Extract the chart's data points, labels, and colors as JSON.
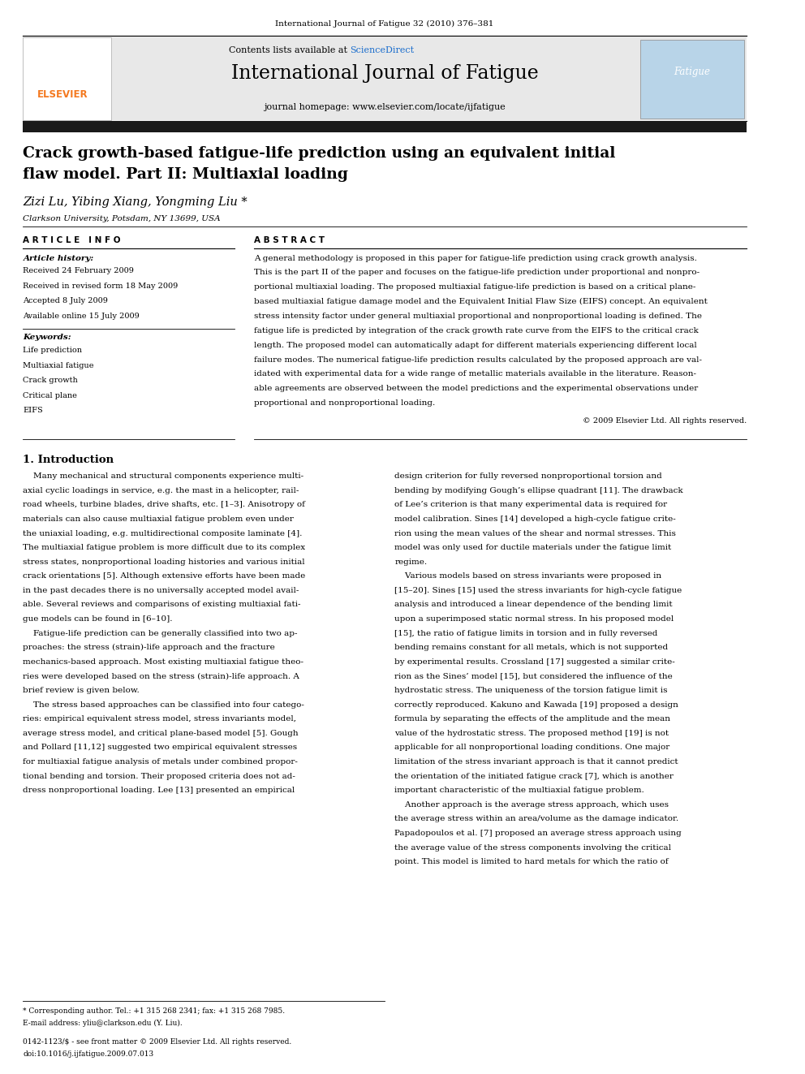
{
  "page_width": 9.92,
  "page_height": 13.23,
  "background_color": "#ffffff",
  "top_note": "International Journal of Fatigue 32 (2010) 376–381",
  "header_bg": "#e8e8e8",
  "header_title": "International Journal of Fatigue",
  "header_subtitle": "journal homepage: www.elsevier.com/locate/ijfatigue",
  "header_contents": "Contents lists available at ScienceDirect",
  "sciencedirect_color": "#1a6dcc",
  "elsevier_color": "#f47920",
  "dark_bar_color": "#1a1a1a",
  "article_title_line1": "Crack growth-based fatigue-life prediction using an equivalent initial",
  "article_title_line2": "flaw model. Part II: Multiaxial loading",
  "authors": "Zizi Lu, Yibing Xiang, Yongming Liu *",
  "affiliation": "Clarkson University, Potsdam, NY 13699, USA",
  "article_info_header": "A R T I C L E   I N F O",
  "abstract_header": "A B S T R A C T",
  "article_history_label": "Article history:",
  "history_lines": [
    "Received 24 February 2009",
    "Received in revised form 18 May 2009",
    "Accepted 8 July 2009",
    "Available online 15 July 2009"
  ],
  "keywords_label": "Keywords:",
  "keywords": [
    "Life prediction",
    "Multiaxial fatigue",
    "Crack growth",
    "Critical plane",
    "EIFS"
  ],
  "abstract_lines": [
    "A general methodology is proposed in this paper for fatigue-life prediction using crack growth analysis.",
    "This is the part II of the paper and focuses on the fatigue-life prediction under proportional and nonpro-",
    "portional multiaxial loading. The proposed multiaxial fatigue-life prediction is based on a critical plane-",
    "based multiaxial fatigue damage model and the Equivalent Initial Flaw Size (EIFS) concept. An equivalent",
    "stress intensity factor under general multiaxial proportional and nonproportional loading is defined. The",
    "fatigue life is predicted by integration of the crack growth rate curve from the EIFS to the critical crack",
    "length. The proposed model can automatically adapt for different materials experiencing different local",
    "failure modes. The numerical fatigue-life prediction results calculated by the proposed approach are val-",
    "idated with experimental data for a wide range of metallic materials available in the literature. Reason-",
    "able agreements are observed between the model predictions and the experimental observations under",
    "proportional and nonproportional loading."
  ],
  "copyright": "© 2009 Elsevier Ltd. All rights reserved.",
  "section1_title": "1. Introduction",
  "intro_left_lines": [
    "    Many mechanical and structural components experience multi-",
    "axial cyclic loadings in service, e.g. the mast in a helicopter, rail-",
    "road wheels, turbine blades, drive shafts, etc. [1–3]. Anisotropy of",
    "materials can also cause multiaxial fatigue problem even under",
    "the uniaxial loading, e.g. multidirectional composite laminate [4].",
    "The multiaxial fatigue problem is more difficult due to its complex",
    "stress states, nonproportional loading histories and various initial",
    "crack orientations [5]. Although extensive efforts have been made",
    "in the past decades there is no universally accepted model avail-",
    "able. Several reviews and comparisons of existing multiaxial fati-",
    "gue models can be found in [6–10].",
    "    Fatigue-life prediction can be generally classified into two ap-",
    "proaches: the stress (strain)-life approach and the fracture",
    "mechanics-based approach. Most existing multiaxial fatigue theo-",
    "ries were developed based on the stress (strain)-life approach. A",
    "brief review is given below.",
    "    The stress based approaches can be classified into four catego-",
    "ries: empirical equivalent stress model, stress invariants model,",
    "average stress model, and critical plane-based model [5]. Gough",
    "and Pollard [11,12] suggested two empirical equivalent stresses",
    "for multiaxial fatigue analysis of metals under combined propor-",
    "tional bending and torsion. Their proposed criteria does not ad-",
    "dress nonproportional loading. Lee [13] presented an empirical"
  ],
  "intro_right_lines": [
    "design criterion for fully reversed nonproportional torsion and",
    "bending by modifying Gough’s ellipse quadrant [11]. The drawback",
    "of Lee’s criterion is that many experimental data is required for",
    "model calibration. Sines [14] developed a high-cycle fatigue crite-",
    "rion using the mean values of the shear and normal stresses. This",
    "model was only used for ductile materials under the fatigue limit",
    "regime.",
    "    Various models based on stress invariants were proposed in",
    "[15–20]. Sines [15] used the stress invariants for high-cycle fatigue",
    "analysis and introduced a linear dependence of the bending limit",
    "upon a superimposed static normal stress. In his proposed model",
    "[15], the ratio of fatigue limits in torsion and in fully reversed",
    "bending remains constant for all metals, which is not supported",
    "by experimental results. Crossland [17] suggested a similar crite-",
    "rion as the Sines’ model [15], but considered the influence of the",
    "hydrostatic stress. The uniqueness of the torsion fatigue limit is",
    "correctly reproduced. Kakuno and Kawada [19] proposed a design",
    "formula by separating the effects of the amplitude and the mean",
    "value of the hydrostatic stress. The proposed method [19] is not",
    "applicable for all nonproportional loading conditions. One major",
    "limitation of the stress invariant approach is that it cannot predict",
    "the orientation of the initiated fatigue crack [7], which is another",
    "important characteristic of the multiaxial fatigue problem.",
    "    Another approach is the average stress approach, which uses",
    "the average stress within an area/volume as the damage indicator.",
    "Papadopoulos et al. [7] proposed an average stress approach using",
    "the average value of the stress components involving the critical",
    "point. This model is limited to hard metals for which the ratio of"
  ],
  "footer_star": "* Corresponding author. Tel.: +1 315 268 2341; fax: +1 315 268 7985.",
  "footer_email": "E-mail address: yliu@clarkson.edu (Y. Liu).",
  "footer_issn": "0142-1123/$ - see front matter © 2009 Elsevier Ltd. All rights reserved.",
  "footer_doi": "doi:10.1016/j.ijfatigue.2009.07.013"
}
